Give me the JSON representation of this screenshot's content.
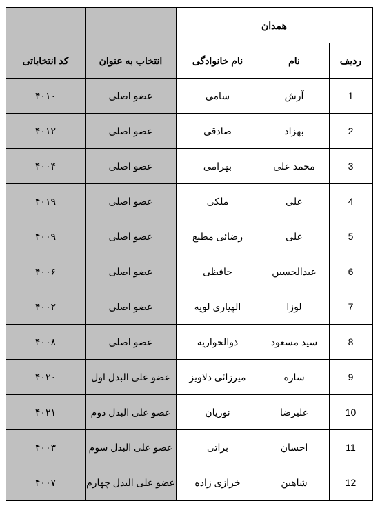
{
  "region": "همدان",
  "headers": {
    "row": "ردیف",
    "name": "نام",
    "family": "نام خانوادگی",
    "title": "انتخاب به عنوان",
    "code": "کد انتخاباتی"
  },
  "rows": [
    {
      "n": "1",
      "name": "آرش",
      "family": "سامی",
      "title": "عضو اصلی",
      "code": "۴۰۱۰"
    },
    {
      "n": "2",
      "name": "بهزاد",
      "family": "صادقی",
      "title": "عضو اصلی",
      "code": "۴۰۱۲"
    },
    {
      "n": "3",
      "name": "محمد علی",
      "family": "بهرامی",
      "title": "عضو اصلی",
      "code": "۴۰۰۴"
    },
    {
      "n": "4",
      "name": "علی",
      "family": "ملکی",
      "title": "عضو اصلی",
      "code": "۴۰۱۹"
    },
    {
      "n": "5",
      "name": "علی",
      "family": "رضائی مطیع",
      "title": "عضو اصلی",
      "code": "۴۰۰۹"
    },
    {
      "n": "6",
      "name": "عبدالحسین",
      "family": "حافظی",
      "title": "عضو اصلی",
      "code": "۴۰۰۶"
    },
    {
      "n": "7",
      "name": "لوزا",
      "family": "الهیاری لویه",
      "title": "عضو اصلی",
      "code": "۴۰۰۲"
    },
    {
      "n": "8",
      "name": "سید مسعود",
      "family": "ذوالحواریه",
      "title": "عضو اصلی",
      "code": "۴۰۰۸"
    },
    {
      "n": "9",
      "name": "ساره",
      "family": "میرزائی دلاویز",
      "title": "عضو علی البدل اول",
      "code": "۴۰۲۰"
    },
    {
      "n": "10",
      "name": "علیرضا",
      "family": "نوریان",
      "title": "عضو علی البدل دوم",
      "code": "۴۰۲۱"
    },
    {
      "n": "11",
      "name": "احسان",
      "family": "براتی",
      "title": "عضو علی البدل سوم",
      "code": "۴۰۰۳"
    },
    {
      "n": "12",
      "name": "شاهین",
      "family": "خرازی زاده",
      "title": "عضو علی البدل چهارم",
      "code": "۴۰۰۷"
    }
  ],
  "colors": {
    "grey": "#c0c0c0",
    "border": "#000000",
    "bg": "#ffffff"
  }
}
